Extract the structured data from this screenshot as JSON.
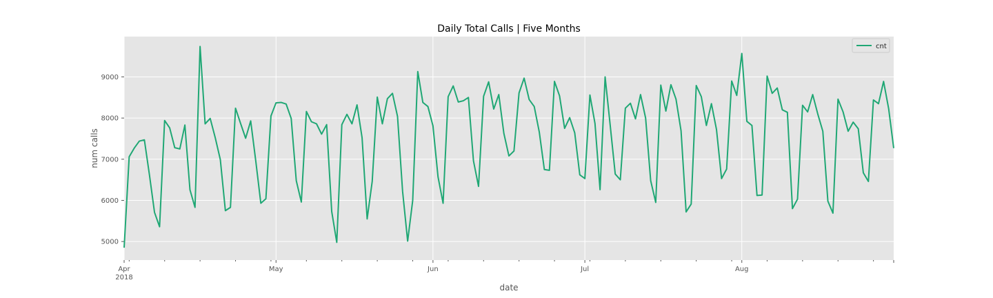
{
  "chart_data": {
    "type": "line",
    "title": "Daily Total Calls  |  Five Months",
    "xlabel": "date",
    "ylabel": "num calls",
    "start_date": "2018-04-01",
    "end_date": "2018-08-31",
    "xlim": [
      "2018-04-01",
      "2018-08-31"
    ],
    "ylim": [
      4550,
      9980
    ],
    "grid": true,
    "legend_position": "top-right",
    "x_tick_labels": [
      {
        "date": "2018-04-01",
        "label": "Apr",
        "sublabel": "2018"
      },
      {
        "date": "2018-05-01",
        "label": "May",
        "sublabel": ""
      },
      {
        "date": "2018-06-01",
        "label": "Jun",
        "sublabel": ""
      },
      {
        "date": "2018-07-01",
        "label": "Jul",
        "sublabel": ""
      },
      {
        "date": "2018-08-01",
        "label": "Aug",
        "sublabel": ""
      }
    ],
    "y_ticks": [
      5000,
      6000,
      7000,
      8000,
      9000
    ],
    "series": [
      {
        "name": "cnt",
        "color": "#1fa774",
        "values": [
          4850,
          7060,
          7270,
          7440,
          7470,
          6620,
          5710,
          5360,
          7940,
          7760,
          7280,
          7250,
          7830,
          6260,
          5830,
          9740,
          7860,
          7990,
          7520,
          6990,
          5750,
          5830,
          8240,
          7870,
          7510,
          7930,
          6960,
          5930,
          6040,
          8050,
          8370,
          8380,
          8340,
          7990,
          6480,
          5960,
          8160,
          7910,
          7860,
          7610,
          7840,
          5730,
          4980,
          7840,
          8090,
          7860,
          8320,
          7520,
          5550,
          6460,
          8510,
          7860,
          8470,
          8600,
          8040,
          6220,
          5010,
          6000,
          9130,
          8380,
          8280,
          7810,
          6570,
          5930,
          8520,
          8780,
          8390,
          8420,
          8500,
          6960,
          6340,
          8530,
          8880,
          8220,
          8570,
          7630,
          7080,
          7200,
          8610,
          8970,
          8450,
          8280,
          7660,
          6750,
          6730,
          8890,
          8540,
          7750,
          8010,
          7640,
          6620,
          6530,
          8560,
          7870,
          6260,
          9000,
          7830,
          6640,
          6500,
          8240,
          8360,
          7980,
          8570,
          8000,
          6480,
          5950,
          8800,
          8170,
          8810,
          8460,
          7690,
          5720,
          5910,
          8790,
          8520,
          7820,
          8350,
          7720,
          6530,
          6760,
          8900,
          8550,
          9570,
          7920,
          7820,
          6120,
          6130,
          9020,
          8600,
          8730,
          8200,
          8140,
          5800,
          6030,
          8310,
          8150,
          8570,
          8100,
          7680,
          5980,
          5690,
          8460,
          8150,
          7680,
          7900,
          7740,
          6670,
          6460,
          8440,
          8350,
          8890,
          8230,
          7270
        ]
      }
    ]
  }
}
